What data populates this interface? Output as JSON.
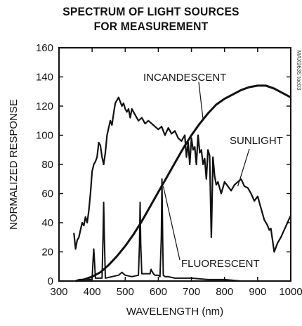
{
  "chart_data": {
    "type": "line",
    "title_lines": [
      "SPECTRUM OF LIGHT SOURCES",
      "FOR MEASUREMENT"
    ],
    "xlabel": "WAVELENGTH (nm)",
    "ylabel": "NORMALIZED RESPONSE",
    "xlim": [
      300,
      1000
    ],
    "ylim": [
      0,
      160
    ],
    "xticks": [
      300,
      400,
      500,
      600,
      700,
      800,
      900,
      1000
    ],
    "yticks": [
      0,
      20,
      40,
      60,
      80,
      100,
      120,
      140,
      160
    ],
    "grid": false,
    "figure_id": "MAX9635 toc03",
    "series": [
      {
        "name": "INCANDESCENT",
        "x": [
          350,
          375,
          400,
          425,
          450,
          475,
          500,
          525,
          550,
          575,
          600,
          625,
          650,
          675,
          700,
          725,
          750,
          775,
          800,
          825,
          850,
          875,
          900,
          925,
          950,
          975,
          1000
        ],
        "y": [
          0,
          1,
          3,
          6,
          11,
          17,
          24,
          32,
          41,
          51,
          61,
          71,
          81,
          91,
          100,
          108,
          115,
          121,
          125,
          128,
          131,
          133,
          134,
          134,
          132,
          129,
          126
        ]
      },
      {
        "name": "SUNLIGHT",
        "x": [
          345,
          350,
          355,
          360,
          365,
          370,
          375,
          380,
          385,
          390,
          395,
          400,
          405,
          410,
          415,
          420,
          425,
          430,
          435,
          440,
          445,
          450,
          455,
          460,
          465,
          470,
          475,
          480,
          485,
          490,
          495,
          500,
          505,
          510,
          515,
          520,
          530,
          540,
          550,
          560,
          570,
          580,
          590,
          600,
          610,
          620,
          630,
          640,
          650,
          660,
          670,
          680,
          685,
          690,
          695,
          700,
          705,
          710,
          715,
          720,
          725,
          730,
          735,
          740,
          745,
          750,
          755,
          760,
          765,
          770,
          775,
          780,
          790,
          800,
          810,
          820,
          830,
          840,
          850,
          860,
          870,
          880,
          890,
          900,
          910,
          920,
          930,
          935,
          940,
          950,
          960,
          970,
          980,
          990,
          1000
        ],
        "y": [
          33,
          22,
          28,
          30,
          35,
          40,
          38,
          44,
          40,
          48,
          60,
          75,
          80,
          82,
          85,
          95,
          93,
          85,
          80,
          88,
          100,
          105,
          110,
          107,
          115,
          122,
          124,
          126,
          123,
          120,
          122,
          118,
          116,
          118,
          112,
          118,
          114,
          110,
          112,
          108,
          110,
          108,
          106,
          104,
          106,
          100,
          105,
          101,
          103,
          98,
          96,
          100,
          85,
          95,
          80,
          98,
          90,
          92,
          80,
          100,
          88,
          90,
          80,
          84,
          70,
          90,
          86,
          30,
          85,
          72,
          66,
          68,
          60,
          68,
          65,
          62,
          66,
          68,
          70,
          65,
          64,
          60,
          55,
          58,
          50,
          42,
          38,
          35,
          36,
          20,
          26,
          30,
          35,
          40,
          45
        ]
      },
      {
        "name": "FLUORESCENT",
        "x": [
          345,
          350,
          360,
          380,
          400,
          403,
          405,
          407,
          410,
          420,
          430,
          433,
          435,
          437,
          440,
          460,
          480,
          490,
          500,
          520,
          540,
          543,
          545,
          547,
          550,
          570,
          575,
          578,
          580,
          583,
          585,
          590,
          600,
          605,
          609,
          611,
          613,
          615,
          620,
          630,
          650,
          700,
          750,
          800,
          850,
          900,
          950,
          1000
        ],
        "y": [
          0,
          0,
          1,
          1,
          1,
          15,
          22,
          15,
          2,
          2,
          2,
          30,
          54,
          30,
          2,
          3,
          4,
          6,
          4,
          3,
          4,
          25,
          54,
          25,
          5,
          5,
          5,
          8,
          7,
          6,
          5,
          4,
          4,
          3,
          30,
          70,
          30,
          4,
          3,
          3,
          2,
          2,
          1,
          1,
          0,
          0,
          0,
          0
        ]
      }
    ],
    "annotations": [
      {
        "text": "INCANDESCENT",
        "points_to_x": 735,
        "points_to_y": 111
      },
      {
        "text": "SUNLIGHT",
        "points_to_x": 840,
        "points_to_y": 65
      },
      {
        "text": "FLUORESCENT",
        "points_to_x": 615,
        "points_to_y": 65
      }
    ]
  }
}
